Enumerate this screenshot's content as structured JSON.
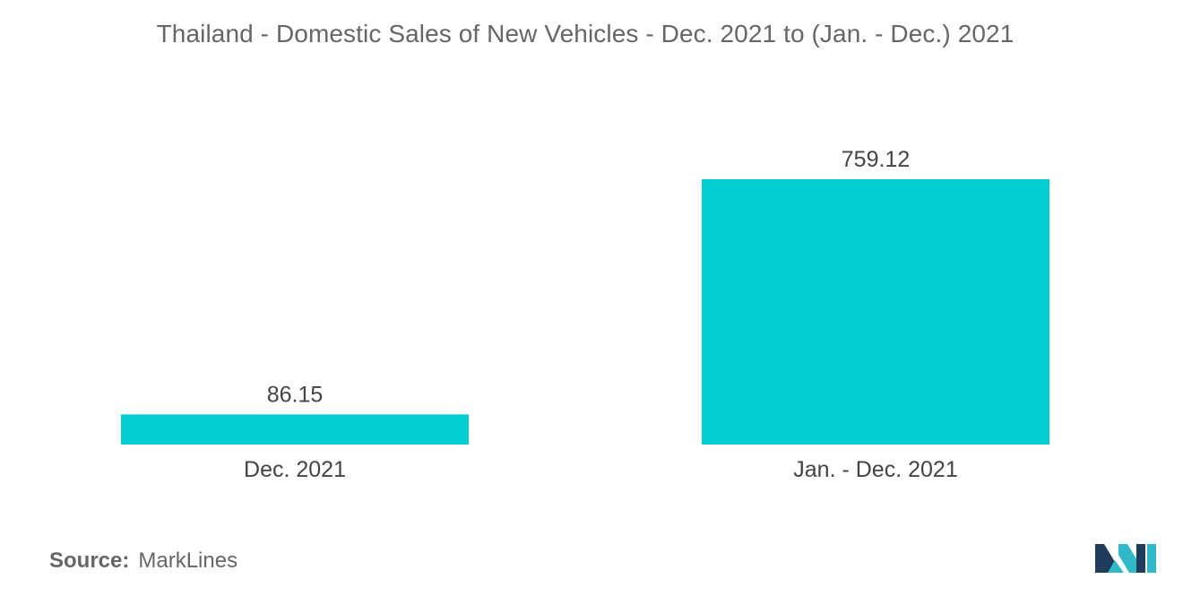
{
  "title": "Thailand - Domestic Sales of New Vehicles - Dec. 2021 to (Jan. - Dec.) 2021",
  "source": {
    "label": "Source:",
    "value": "MarkLines"
  },
  "logo": {
    "icon": "mordor-intelligence-logo-icon",
    "colors": [
      "#1f3d5a",
      "#2fb8c8"
    ]
  },
  "colors": {
    "bar": "#00ced1",
    "title": "#666666",
    "text": "#444444"
  },
  "chart_data": {
    "type": "bar",
    "title": "Thailand - Domestic Sales of New Vehicles - Dec. 2021 to (Jan. - Dec.) 2021",
    "categories": [
      "Dec. 2021",
      "Jan. - Dec. 2021"
    ],
    "values": [
      86.15,
      759.12
    ],
    "value_labels": [
      "86.15",
      "759.12"
    ],
    "xlabel": "",
    "ylabel": "",
    "ylim": [
      0,
      759.12
    ],
    "grid": false,
    "legend": "none",
    "bar_color": "#00ced1"
  }
}
